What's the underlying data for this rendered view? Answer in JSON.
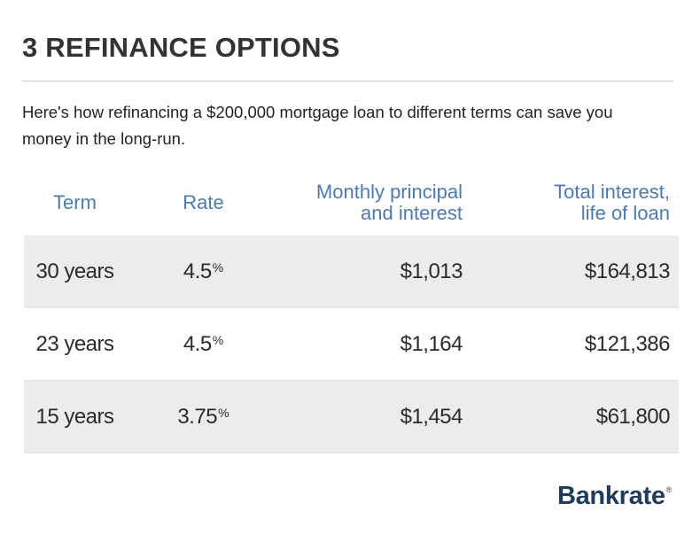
{
  "header": {
    "title": "3 REFINANCE OPTIONS",
    "intro": "Here's how refinancing a $200,000 mortgage loan to different terms can save you money in the long-run."
  },
  "table": {
    "columns": {
      "term": "Term",
      "rate": "Rate",
      "monthly_line1": "Monthly principal",
      "monthly_line2": "and interest",
      "total_line1": "Total interest,",
      "total_line2": "life of loan"
    },
    "rows": [
      {
        "term": "30 years",
        "rate": "4.5",
        "rate_unit": "%",
        "monthly": "$1,013",
        "total": "$164,813"
      },
      {
        "term": "23 years",
        "rate": "4.5",
        "rate_unit": "%",
        "monthly": "$1,164",
        "total": "$121,386"
      },
      {
        "term": "15 years",
        "rate": "3.75",
        "rate_unit": "%",
        "monthly": "$1,454",
        "total": "$61,800"
      }
    ],
    "shaded_row_color": "#ececec",
    "header_color": "#4a7ab8"
  },
  "footer": {
    "logo_text": "Bankrate",
    "logo_mark": "®",
    "logo_color": "#1f3a5c"
  }
}
